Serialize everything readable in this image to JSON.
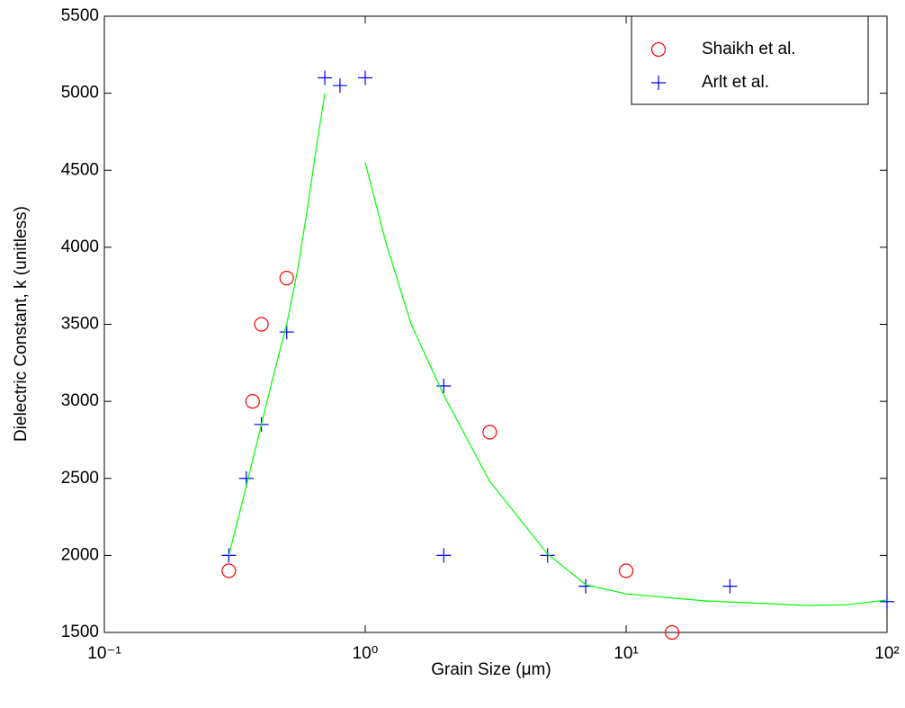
{
  "chart_data": {
    "type": "scatter",
    "xlabel": "Grain Size (μm)",
    "ylabel": "Dielectric Constant, k (unitless)",
    "xscale": "log",
    "xlim": [
      0.1,
      100
    ],
    "ylim": [
      1500,
      5500
    ],
    "xticks": [
      {
        "value": 0.1,
        "label": "10⁻¹"
      },
      {
        "value": 1,
        "label": "10⁰"
      },
      {
        "value": 10,
        "label": "10¹"
      },
      {
        "value": 100,
        "label": "10²"
      }
    ],
    "yticks": [
      1500,
      2000,
      2500,
      3000,
      3500,
      4000,
      4500,
      5000,
      5500
    ],
    "grid": false,
    "legend": "upper right",
    "series": [
      {
        "name": "Shaikh et al.",
        "color": "#ff0000",
        "marker": "o",
        "x": [
          0.3,
          0.37,
          0.4,
          0.5,
          3,
          10,
          15
        ],
        "values": [
          1900,
          3000,
          3500,
          3800,
          2800,
          1900,
          1500
        ]
      },
      {
        "name": "Arlt et al.",
        "color": "#0000ff",
        "marker": "+",
        "x": [
          0.3,
          0.35,
          0.4,
          0.5,
          0.7,
          0.8,
          1,
          2,
          2,
          5,
          7,
          25,
          100
        ],
        "values": [
          2000,
          2500,
          2850,
          3450,
          5100,
          5050,
          5100,
          3100,
          2000,
          2000,
          1800,
          1800,
          1700
        ]
      },
      {
        "color": "#00ff00",
        "marker": "line",
        "x": [
          0.3,
          0.35,
          0.4,
          0.45,
          0.5,
          0.55,
          0.6,
          0.65,
          0.7
        ],
        "values": [
          2000,
          2450,
          2850,
          3200,
          3500,
          3850,
          4250,
          4650,
          5000
        ]
      },
      {
        "color": "#00ff00",
        "marker": "line",
        "x": [
          1,
          1.2,
          1.5,
          2,
          3,
          5,
          7,
          10,
          20,
          50,
          70,
          100
        ],
        "values": [
          4550,
          4030,
          3500,
          3040,
          2480,
          2010,
          1810,
          1750,
          1705,
          1675,
          1680,
          1710
        ]
      }
    ]
  }
}
